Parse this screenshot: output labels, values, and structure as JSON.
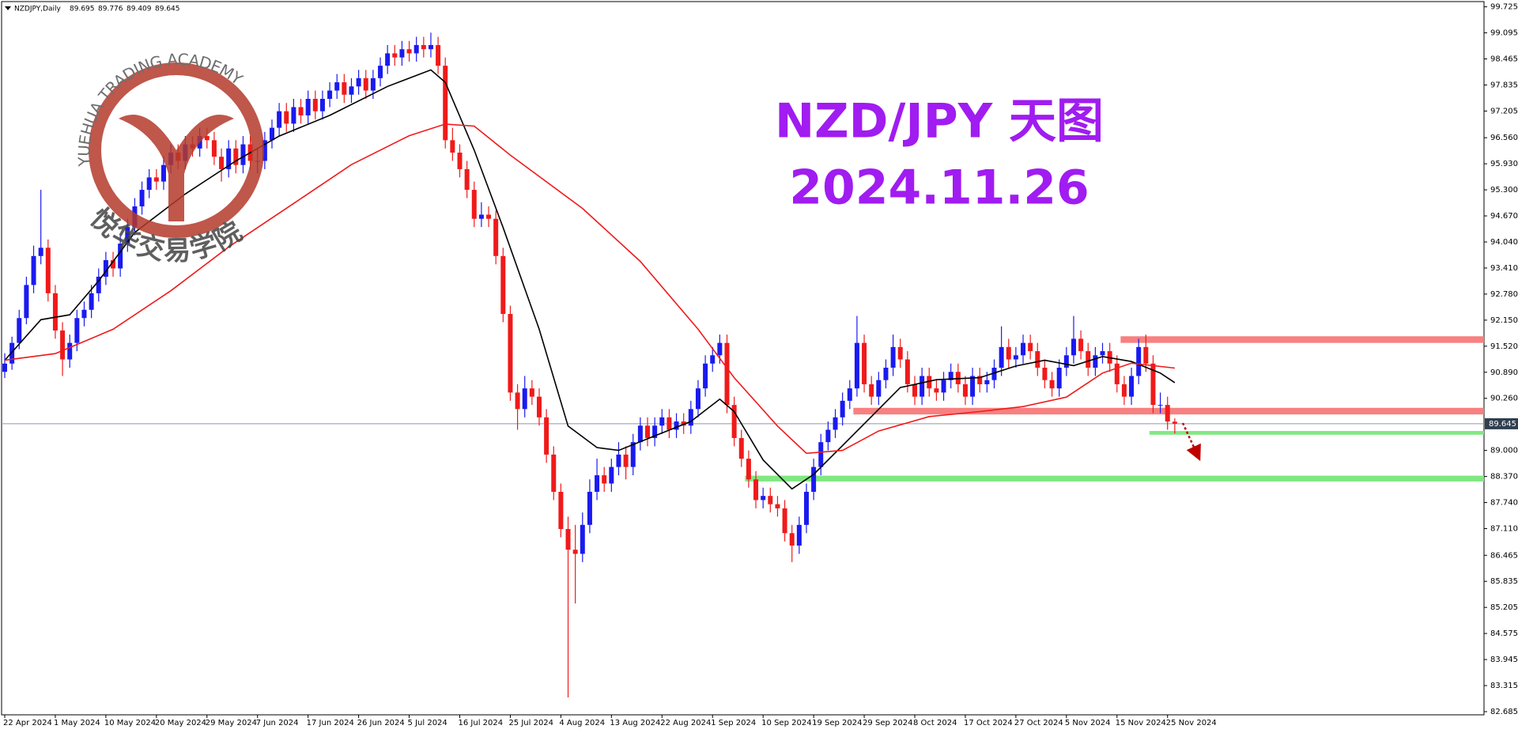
{
  "chart_data": {
    "type": "candlestick",
    "symbol": "NZDJPY,Daily",
    "title": "NZD/JPY 天图",
    "subtitle": "2024.11.26",
    "watermark": {
      "text_en": "YUEHUA TRADING ACADEMY",
      "text_cn": "悦华交易学院"
    },
    "up_color": "#1a1af0",
    "down_color": "#f01a1a",
    "categories": [
      "22 Apr 2024",
      null,
      null,
      null,
      null,
      null,
      null,
      "1 May 2024",
      null,
      null,
      null,
      null,
      null,
      null,
      "10 May 2024",
      null,
      null,
      null,
      null,
      null,
      null,
      "20 May 2024",
      null,
      null,
      null,
      null,
      null,
      null,
      "29 May 2024",
      null,
      null,
      null,
      null,
      null,
      null,
      "7 Jun 2024",
      null,
      null,
      null,
      null,
      null,
      null,
      "17 Jun 2024",
      null,
      null,
      null,
      null,
      null,
      null,
      "26 Jun 2024",
      null,
      null,
      null,
      null,
      null,
      null,
      "5 Jul 2024",
      null,
      null,
      null,
      null,
      null,
      null,
      "16 Jul 2024",
      null,
      null,
      null,
      null,
      null,
      null,
      "25 Jul 2024",
      null,
      null,
      null,
      null,
      null,
      null,
      "4 Aug 2024",
      null,
      null,
      null,
      null,
      null,
      null,
      "13 Aug 2024",
      null,
      null,
      null,
      null,
      null,
      null,
      "22 Aug 2024",
      null,
      null,
      null,
      null,
      null,
      null,
      "1 Sep 2024",
      null,
      null,
      null,
      null,
      null,
      null,
      "10 Sep 2024",
      null,
      null,
      null,
      null,
      null,
      null,
      "19 Sep 2024",
      null,
      null,
      null,
      null,
      null,
      null,
      "29 Sep 2024",
      null,
      null,
      null,
      null,
      null,
      null,
      "8 Oct 2024",
      null,
      null,
      null,
      null,
      null,
      null,
      "17 Oct 2024",
      null,
      null,
      null,
      null,
      null,
      null,
      "27 Oct 2024",
      null,
      null,
      null,
      null,
      null,
      null,
      "5 Nov 2024",
      null,
      null,
      null,
      null,
      null,
      null,
      "15 Nov 2024",
      null,
      null,
      null,
      null,
      null,
      null,
      "25 Nov 2024",
      null
    ],
    "candles": [
      [
        90.9,
        91.35,
        90.75,
        91.1
      ],
      [
        91.1,
        91.75,
        90.95,
        91.6
      ],
      [
        91.6,
        92.4,
        91.45,
        92.2
      ],
      [
        92.2,
        93.2,
        92.05,
        93.0
      ],
      [
        93.0,
        93.95,
        92.8,
        93.7
      ],
      [
        93.7,
        95.3,
        93.5,
        93.9
      ],
      [
        93.9,
        94.1,
        92.6,
        92.8
      ],
      [
        92.8,
        93.0,
        91.7,
        91.9
      ],
      [
        91.9,
        92.1,
        90.8,
        91.2
      ],
      [
        91.2,
        91.8,
        91.0,
        91.6
      ],
      [
        91.6,
        92.4,
        91.4,
        92.2
      ],
      [
        92.2,
        92.6,
        92.0,
        92.4
      ],
      [
        92.4,
        93.0,
        92.2,
        92.8
      ],
      [
        92.8,
        93.4,
        92.6,
        93.2
      ],
      [
        93.2,
        93.8,
        93.0,
        93.6
      ],
      [
        93.6,
        93.8,
        93.2,
        93.4
      ],
      [
        93.4,
        94.2,
        93.2,
        94.0
      ],
      [
        94.0,
        94.6,
        93.8,
        94.4
      ],
      [
        94.4,
        95.1,
        94.2,
        94.9
      ],
      [
        94.9,
        95.5,
        94.7,
        95.3
      ],
      [
        95.3,
        95.8,
        95.1,
        95.6
      ],
      [
        95.6,
        95.8,
        95.3,
        95.5
      ],
      [
        95.5,
        96.1,
        95.3,
        95.9
      ],
      [
        95.9,
        96.4,
        95.7,
        96.2
      ],
      [
        96.2,
        96.4,
        95.8,
        96.0
      ],
      [
        96.0,
        96.6,
        95.8,
        96.4
      ],
      [
        96.4,
        96.6,
        96.1,
        96.3
      ],
      [
        96.3,
        96.8,
        96.1,
        96.6
      ],
      [
        96.6,
        96.8,
        96.3,
        96.5
      ],
      [
        96.5,
        96.7,
        95.9,
        96.1
      ],
      [
        96.1,
        96.3,
        95.5,
        95.8
      ],
      [
        95.8,
        96.5,
        95.6,
        96.3
      ],
      [
        96.3,
        96.5,
        95.7,
        95.9
      ],
      [
        95.9,
        96.6,
        95.7,
        96.4
      ],
      [
        96.4,
        96.6,
        95.8,
        96.0
      ],
      [
        96.0,
        96.3,
        95.7,
        96.0
      ],
      [
        96.0,
        96.7,
        95.8,
        96.5
      ],
      [
        96.5,
        97.0,
        96.3,
        96.8
      ],
      [
        96.8,
        97.4,
        96.6,
        97.2
      ],
      [
        97.2,
        97.4,
        96.7,
        96.9
      ],
      [
        96.9,
        97.5,
        96.7,
        97.3
      ],
      [
        97.3,
        97.5,
        96.9,
        97.1
      ],
      [
        97.1,
        97.7,
        96.9,
        97.5
      ],
      [
        97.5,
        97.7,
        97.0,
        97.2
      ],
      [
        97.2,
        97.7,
        97.0,
        97.5
      ],
      [
        97.5,
        97.9,
        97.3,
        97.7
      ],
      [
        97.7,
        98.1,
        97.5,
        97.9
      ],
      [
        97.9,
        98.1,
        97.4,
        97.6
      ],
      [
        97.6,
        98.0,
        97.4,
        97.8
      ],
      [
        97.8,
        98.2,
        97.6,
        98.0
      ],
      [
        98.0,
        98.2,
        97.5,
        97.7
      ],
      [
        97.7,
        98.2,
        97.5,
        98.0
      ],
      [
        98.0,
        98.5,
        97.8,
        98.3
      ],
      [
        98.3,
        98.8,
        98.1,
        98.6
      ],
      [
        98.6,
        98.8,
        98.3,
        98.5
      ],
      [
        98.5,
        98.9,
        98.3,
        98.7
      ],
      [
        98.7,
        98.9,
        98.4,
        98.6
      ],
      [
        98.6,
        99.0,
        98.4,
        98.8
      ],
      [
        98.8,
        99.0,
        98.5,
        98.7
      ],
      [
        98.7,
        99.1,
        98.5,
        98.8
      ],
      [
        98.8,
        99.0,
        98.1,
        98.3
      ],
      [
        98.3,
        98.5,
        96.3,
        96.5
      ],
      [
        96.5,
        96.8,
        96.0,
        96.2
      ],
      [
        96.2,
        96.4,
        95.6,
        95.8
      ],
      [
        95.8,
        96.0,
        95.1,
        95.3
      ],
      [
        95.3,
        95.5,
        94.4,
        94.6
      ],
      [
        94.6,
        95.0,
        94.4,
        94.7
      ],
      [
        94.7,
        94.9,
        94.4,
        94.6
      ],
      [
        94.6,
        94.8,
        93.5,
        93.7
      ],
      [
        93.7,
        93.9,
        92.1,
        92.3
      ],
      [
        92.3,
        92.5,
        90.2,
        90.4
      ],
      [
        90.4,
        90.6,
        89.5,
        90.0
      ],
      [
        90.0,
        90.8,
        89.8,
        90.5
      ],
      [
        90.5,
        90.7,
        90.1,
        90.3
      ],
      [
        90.3,
        90.5,
        89.6,
        89.8
      ],
      [
        89.8,
        90.0,
        88.7,
        88.9
      ],
      [
        88.9,
        89.1,
        87.8,
        88.0
      ],
      [
        88.0,
        88.2,
        86.9,
        87.1
      ],
      [
        87.1,
        87.4,
        83.03,
        86.6
      ],
      [
        86.6,
        87.2,
        85.3,
        86.5
      ],
      [
        86.5,
        87.5,
        86.3,
        87.2
      ],
      [
        87.2,
        88.3,
        87.0,
        88.0
      ],
      [
        88.0,
        88.8,
        87.8,
        88.4
      ],
      [
        88.4,
        88.6,
        88.0,
        88.2
      ],
      [
        88.2,
        88.8,
        88.0,
        88.6
      ],
      [
        88.6,
        89.2,
        88.4,
        88.9
      ],
      [
        88.9,
        89.1,
        88.3,
        88.6
      ],
      [
        88.6,
        89.4,
        88.4,
        89.2
      ],
      [
        89.2,
        89.8,
        89.0,
        89.6
      ],
      [
        89.6,
        89.8,
        89.1,
        89.3
      ],
      [
        89.3,
        89.8,
        89.1,
        89.6
      ],
      [
        89.6,
        90.0,
        89.4,
        89.8
      ],
      [
        89.8,
        90.0,
        89.3,
        89.5
      ],
      [
        89.5,
        89.9,
        89.3,
        89.7
      ],
      [
        89.7,
        89.9,
        89.4,
        89.6
      ],
      [
        89.6,
        90.2,
        89.4,
        90.0
      ],
      [
        90.0,
        90.7,
        89.8,
        90.5
      ],
      [
        90.5,
        91.3,
        90.3,
        91.1
      ],
      [
        91.1,
        91.5,
        90.9,
        91.3
      ],
      [
        91.3,
        91.8,
        91.1,
        91.6
      ],
      [
        91.6,
        91.8,
        89.9,
        90.1
      ],
      [
        90.1,
        90.3,
        89.1,
        89.3
      ],
      [
        89.3,
        89.5,
        88.6,
        88.8
      ],
      [
        88.8,
        89.0,
        88.1,
        88.3
      ],
      [
        88.3,
        88.5,
        87.6,
        87.8
      ],
      [
        87.8,
        88.1,
        87.6,
        87.9
      ],
      [
        87.9,
        88.1,
        87.5,
        87.7
      ],
      [
        87.7,
        87.9,
        87.4,
        87.6
      ],
      [
        87.6,
        87.8,
        86.8,
        87.0
      ],
      [
        87.0,
        87.2,
        86.3,
        86.7
      ],
      [
        86.7,
        87.4,
        86.5,
        87.2
      ],
      [
        87.2,
        88.2,
        87.0,
        88.0
      ],
      [
        88.0,
        88.8,
        87.8,
        88.6
      ],
      [
        88.6,
        89.4,
        88.4,
        89.2
      ],
      [
        89.2,
        89.7,
        89.0,
        89.5
      ],
      [
        89.5,
        90.0,
        89.3,
        89.8
      ],
      [
        89.8,
        90.4,
        89.6,
        90.2
      ],
      [
        90.2,
        90.7,
        90.0,
        90.5
      ],
      [
        90.5,
        92.25,
        90.3,
        91.6
      ],
      [
        91.6,
        91.8,
        90.4,
        90.6
      ],
      [
        90.6,
        90.8,
        90.1,
        90.3
      ],
      [
        90.3,
        90.9,
        90.1,
        90.7
      ],
      [
        90.7,
        91.2,
        90.5,
        91.0
      ],
      [
        91.0,
        91.8,
        90.8,
        91.5
      ],
      [
        91.5,
        91.7,
        91.0,
        91.2
      ],
      [
        91.2,
        91.4,
        90.4,
        90.6
      ],
      [
        90.6,
        90.8,
        90.1,
        90.3
      ],
      [
        90.3,
        91.0,
        90.1,
        90.8
      ],
      [
        90.8,
        91.0,
        90.3,
        90.5
      ],
      [
        90.5,
        90.7,
        90.2,
        90.4
      ],
      [
        90.4,
        90.9,
        90.2,
        90.7
      ],
      [
        90.7,
        91.1,
        90.5,
        90.9
      ],
      [
        90.9,
        91.1,
        90.4,
        90.6
      ],
      [
        90.6,
        90.8,
        90.1,
        90.3
      ],
      [
        90.3,
        91.0,
        90.1,
        90.8
      ],
      [
        90.8,
        91.0,
        90.4,
        90.6
      ],
      [
        90.6,
        90.9,
        90.4,
        90.7
      ],
      [
        90.7,
        91.2,
        90.5,
        91.0
      ],
      [
        91.0,
        92.0,
        90.8,
        91.5
      ],
      [
        91.5,
        91.7,
        91.0,
        91.2
      ],
      [
        91.2,
        91.5,
        91.0,
        91.3
      ],
      [
        91.3,
        91.8,
        91.1,
        91.6
      ],
      [
        91.6,
        91.8,
        91.2,
        91.4
      ],
      [
        91.4,
        91.6,
        90.8,
        91.0
      ],
      [
        91.0,
        91.2,
        90.5,
        90.7
      ],
      [
        90.7,
        90.9,
        90.3,
        90.5
      ],
      [
        90.5,
        91.2,
        90.3,
        91.0
      ],
      [
        91.0,
        91.5,
        90.8,
        91.3
      ],
      [
        91.3,
        92.25,
        91.1,
        91.7
      ],
      [
        91.7,
        91.9,
        91.2,
        91.4
      ],
      [
        91.4,
        91.6,
        90.8,
        91.0
      ],
      [
        91.0,
        91.5,
        90.8,
        91.3
      ],
      [
        91.3,
        91.6,
        91.1,
        91.4
      ],
      [
        91.4,
        91.6,
        90.9,
        91.1
      ],
      [
        91.1,
        91.3,
        90.4,
        90.6
      ],
      [
        90.6,
        90.8,
        90.1,
        90.3
      ],
      [
        90.3,
        91.0,
        90.1,
        90.8
      ],
      [
        90.8,
        91.7,
        90.6,
        91.5
      ],
      [
        91.5,
        91.8,
        90.9,
        91.1
      ],
      [
        91.1,
        91.3,
        89.9,
        90.1
      ],
      [
        90.1,
        90.4,
        89.9,
        90.1
      ],
      [
        90.1,
        90.3,
        89.5,
        89.7
      ],
      [
        89.695,
        89.776,
        89.409,
        89.645
      ]
    ],
    "lines": [
      {
        "color": "#000000",
        "x": [
          0,
          5,
          9,
          13,
          18,
          25,
          32,
          38,
          45,
          53,
          59,
          61,
          65,
          69,
          74,
          78,
          82,
          85,
          90,
          95,
          99,
          101,
          105,
          109,
          112,
          116,
          120,
          124,
          129,
          135,
          140,
          144,
          148,
          152,
          156,
          160,
          162
        ],
        "values": [
          91.18,
          92.16,
          92.28,
          93.1,
          94.27,
          95.2,
          96.0,
          96.6,
          97.1,
          97.8,
          98.2,
          97.9,
          96.26,
          94.39,
          91.93,
          89.59,
          89.07,
          89.0,
          89.35,
          89.7,
          90.24,
          89.94,
          88.77,
          88.07,
          88.42,
          89.12,
          89.82,
          90.52,
          90.71,
          90.76,
          91.04,
          91.18,
          91.05,
          91.27,
          91.15,
          90.87,
          90.64
        ]
      },
      {
        "color": "#f01a1a",
        "x": [
          0,
          7,
          15,
          23,
          31,
          40,
          48,
          56,
          61,
          65,
          70,
          80,
          88,
          96,
          101,
          107,
          111,
          116,
          121,
          128,
          135,
          141,
          147,
          152,
          156,
          162
        ],
        "values": [
          91.18,
          91.34,
          91.93,
          92.86,
          93.92,
          94.97,
          95.91,
          96.61,
          96.89,
          96.84,
          96.14,
          94.85,
          93.57,
          91.93,
          90.76,
          89.59,
          88.93,
          89.0,
          89.47,
          89.82,
          89.94,
          90.06,
          90.29,
          90.87,
          91.11,
          90.99
        ]
      }
    ],
    "zones": [
      {
        "low": 91.6,
        "high": 91.76,
        "start": 155,
        "color": "#f88080"
      },
      {
        "low": 89.87,
        "high": 90.03,
        "start": 118,
        "color": "#f88080"
      },
      {
        "low": 89.38,
        "high": 89.47,
        "start": 159,
        "color": "#80e880"
      },
      {
        "low": 88.25,
        "high": 88.39,
        "start": 103,
        "color": "#80e880"
      }
    ],
    "current_price": 89.645,
    "ylim": [
      82.685,
      99.725
    ],
    "yticks": [
      99.725,
      99.095,
      98.465,
      97.835,
      97.205,
      {
        "value": 96.56,
        "label": "96.560"
      },
      {
        "value": 95.93,
        "label": "95.930"
      },
      {
        "value": 95.3,
        "label": "95.300"
      },
      {
        "value": 94.67,
        "label": "94.670"
      },
      {
        "value": 94.04,
        "label": "94.040"
      },
      {
        "value": 93.41,
        "label": "93.410"
      },
      {
        "value": 92.78,
        "label": "92.780"
      },
      {
        "value": 92.15,
        "label": "92.150"
      },
      {
        "value": 91.52,
        "label": "91.520"
      },
      {
        "value": 90.89,
        "label": "90.890"
      },
      {
        "value": 90.26,
        "label": "90.260"
      },
      {
        "value": 89.0,
        "label": "89.000"
      },
      {
        "value": 88.37,
        "label": "88.370"
      },
      {
        "value": 87.74,
        "label": "87.740"
      },
      {
        "value": 87.11,
        "label": "87.110"
      },
      86.465,
      85.835,
      85.205,
      84.575,
      83.945,
      83.315,
      82.685
    ],
    "grid": false
  }
}
